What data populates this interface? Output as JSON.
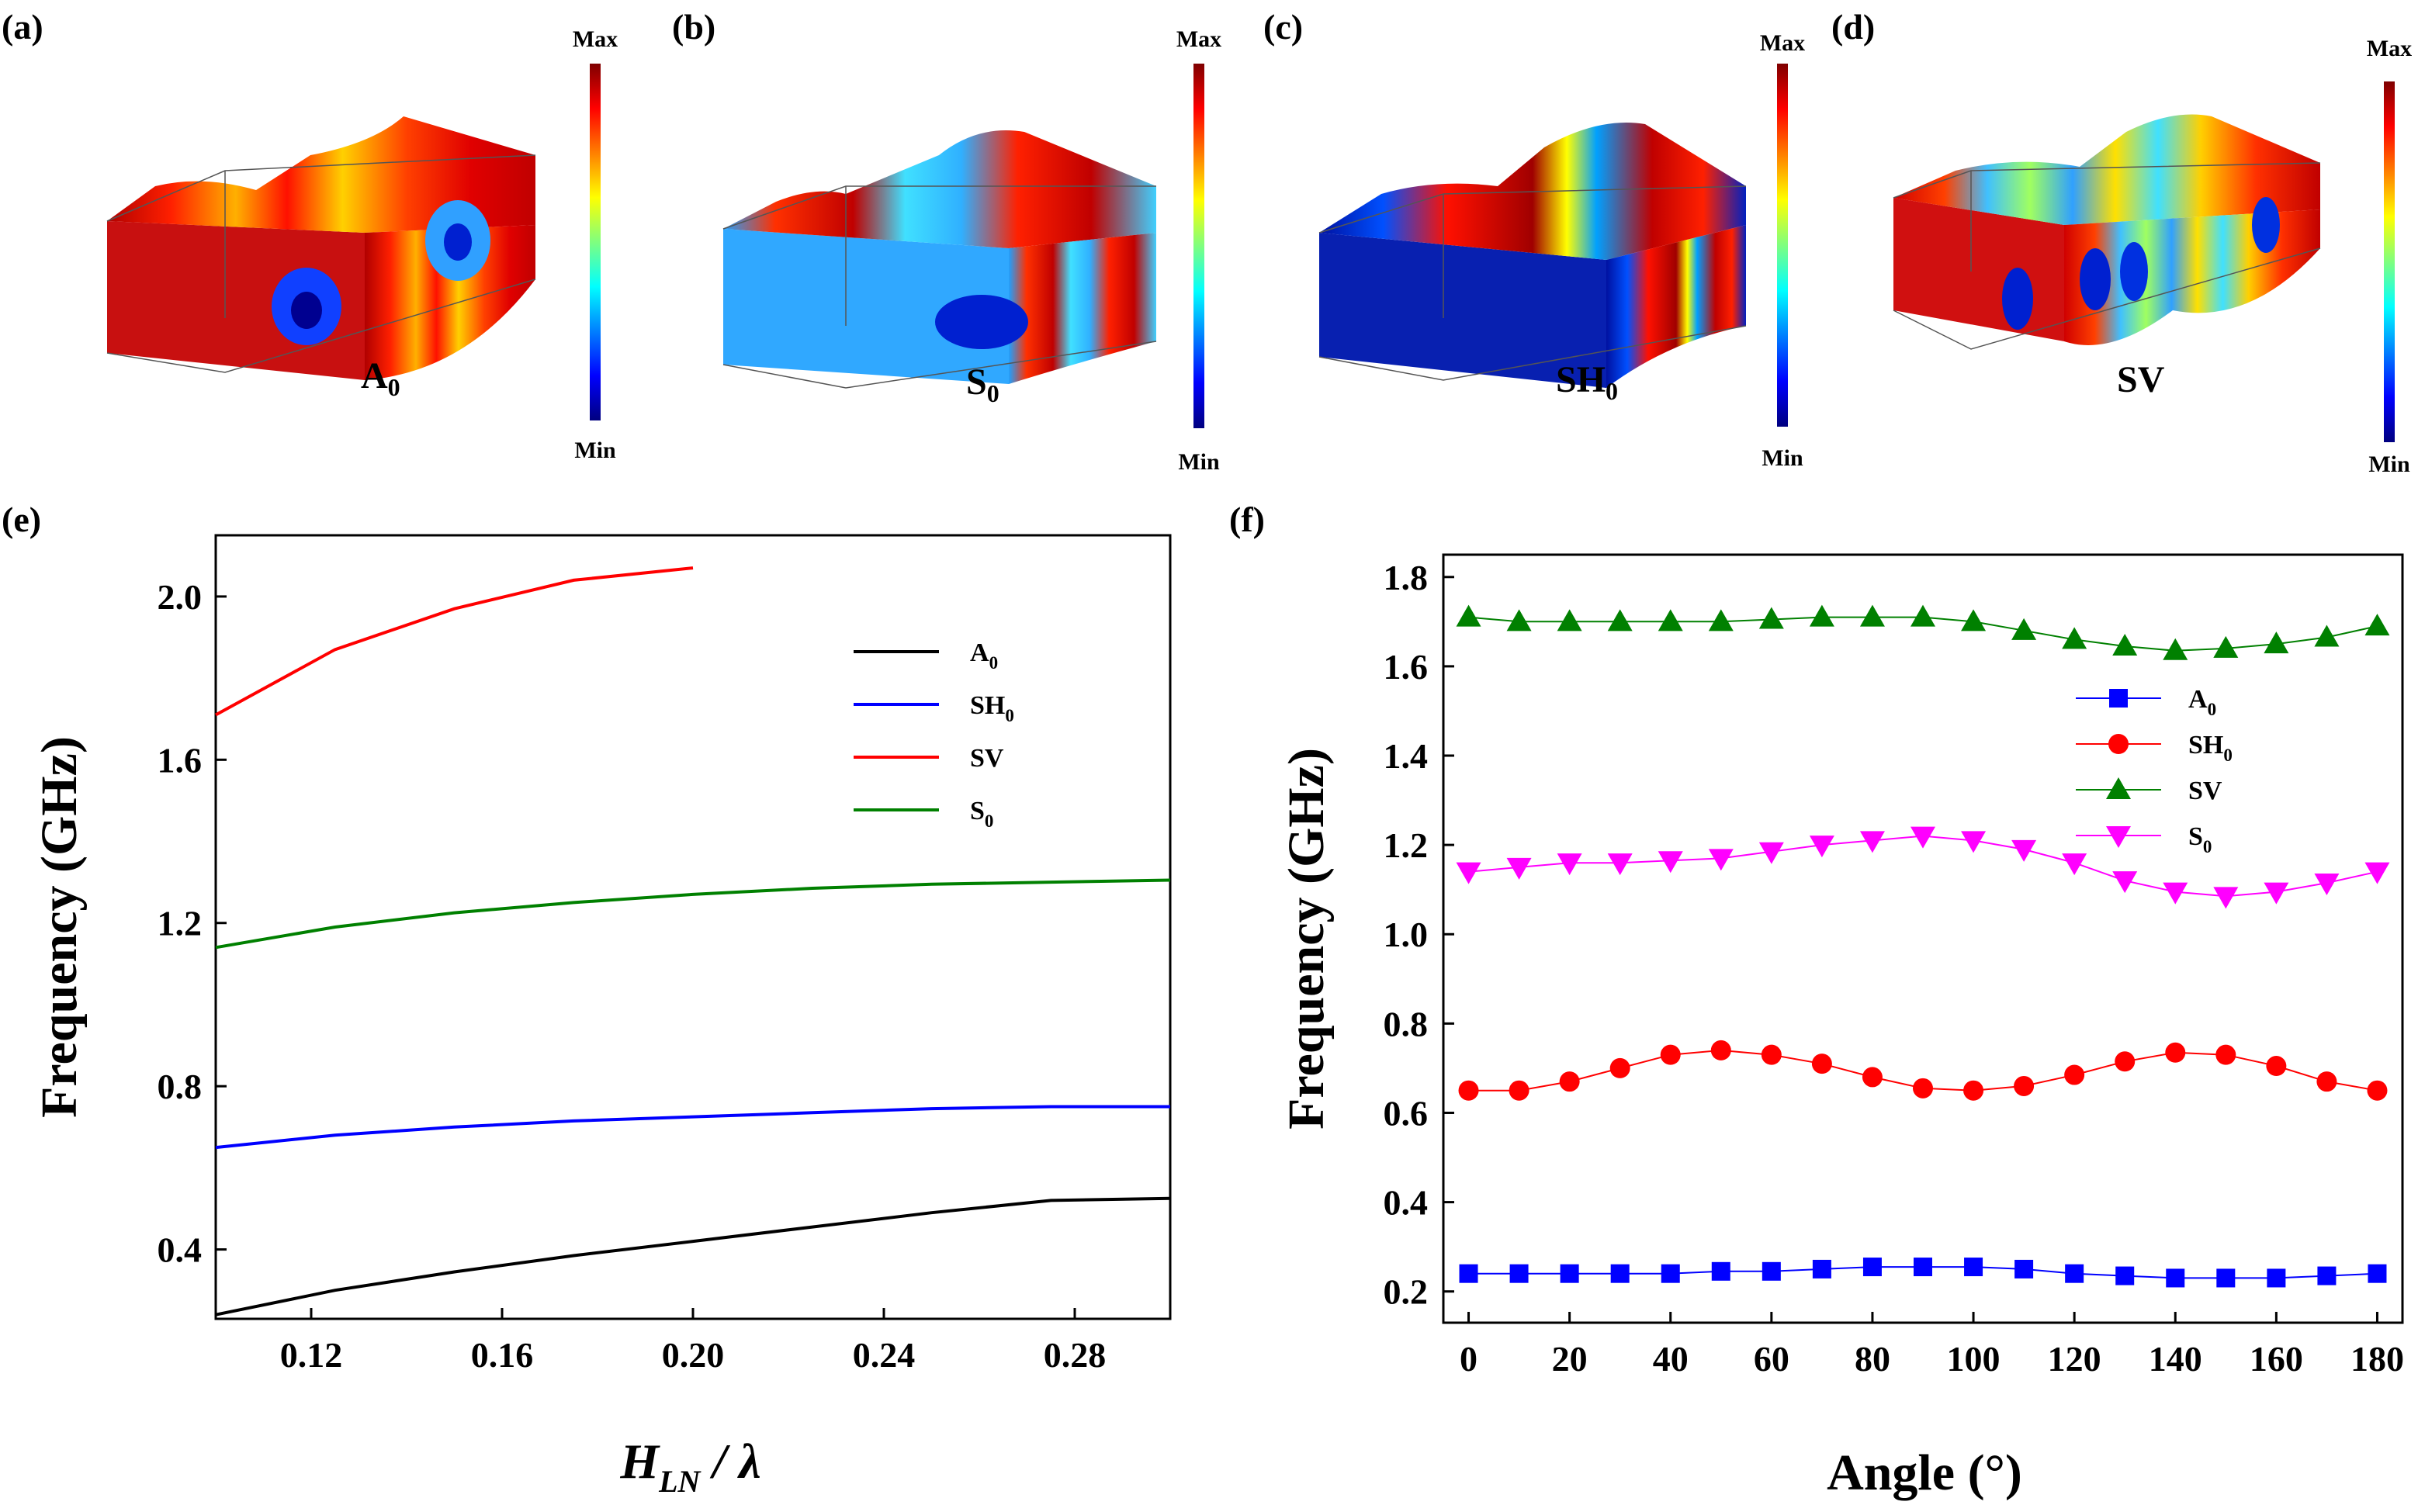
{
  "panels": {
    "a": {
      "label": "(a)",
      "mode": "A",
      "sub": "0",
      "max_label": "Max",
      "min_label": "Min"
    },
    "b": {
      "label": "(b)",
      "mode": "S",
      "sub": "0",
      "max_label": "Max",
      "min_label": "Min"
    },
    "c": {
      "label": "(c)",
      "mode": "SH",
      "sub": "0",
      "max_label": "Max",
      "min_label": "Min"
    },
    "d": {
      "label": "(d)",
      "mode": "SV",
      "sub": "",
      "max_label": "Max",
      "min_label": "Min"
    },
    "e": {
      "label": "(e)"
    },
    "f": {
      "label": "(f)"
    }
  },
  "colormap": [
    "#00007f",
    "#0000ff",
    "#007fff",
    "#00ffff",
    "#7fff7f",
    "#ffff00",
    "#ff7f00",
    "#ff0000",
    "#7f0000"
  ],
  "chart_data": [
    {
      "id": "e",
      "type": "line",
      "xlabel": "H",
      "xlabel_sub": "LN",
      "xlabel_suffix": " / λ",
      "ylabel": "Frequency (GHz)",
      "xlim": [
        0.1,
        0.3
      ],
      "ylim": [
        0.23,
        2.15
      ],
      "xticks": [
        0.12,
        0.16,
        0.2,
        0.24,
        0.28
      ],
      "xtick_labels": [
        "0.12",
        "0.16",
        "0.20",
        "0.24",
        "0.28"
      ],
      "yticks": [
        0.4,
        0.8,
        1.2,
        1.6,
        2.0
      ],
      "ytick_labels": [
        "0.4",
        "0.8",
        "1.2",
        "1.6",
        "2.0"
      ],
      "legend_position": "top-right",
      "series": [
        {
          "name": "A",
          "sub": "0",
          "color": "#000000",
          "x": [
            0.1,
            0.125,
            0.15,
            0.175,
            0.2,
            0.225,
            0.25,
            0.275,
            0.3
          ],
          "y": [
            0.24,
            0.3,
            0.345,
            0.385,
            0.42,
            0.455,
            0.49,
            0.52,
            0.525
          ]
        },
        {
          "name": "SH",
          "sub": "0",
          "color": "#0000ff",
          "x": [
            0.1,
            0.125,
            0.15,
            0.175,
            0.2,
            0.225,
            0.25,
            0.275,
            0.3
          ],
          "y": [
            0.65,
            0.68,
            0.7,
            0.715,
            0.725,
            0.735,
            0.745,
            0.75,
            0.75
          ]
        },
        {
          "name": "SV",
          "sub": "",
          "color": "#ff0000",
          "x": [
            0.1,
            0.125,
            0.15,
            0.175,
            0.2
          ],
          "y": [
            1.71,
            1.87,
            1.97,
            2.04,
            2.07
          ]
        },
        {
          "name": "S",
          "sub": "0",
          "color": "#008000",
          "x": [
            0.1,
            0.125,
            0.15,
            0.175,
            0.2,
            0.225,
            0.25,
            0.275,
            0.3
          ],
          "y": [
            1.14,
            1.19,
            1.225,
            1.25,
            1.27,
            1.285,
            1.295,
            1.3,
            1.305
          ]
        }
      ]
    },
    {
      "id": "f",
      "type": "line",
      "markers": true,
      "xlabel": "Angle (°)",
      "ylabel": "Frequency (GHz)",
      "xlim": [
        -5,
        185
      ],
      "ylim": [
        0.13,
        1.85
      ],
      "xticks": [
        0,
        20,
        40,
        60,
        80,
        100,
        120,
        140,
        160,
        180
      ],
      "xtick_labels": [
        "0",
        "20",
        "40",
        "60",
        "80",
        "100",
        "120",
        "140",
        "160",
        "180"
      ],
      "yticks": [
        0.2,
        0.4,
        0.6,
        0.8,
        1.0,
        1.2,
        1.4,
        1.6,
        1.8
      ],
      "ytick_labels": [
        "0.2",
        "0.4",
        "0.6",
        "0.8",
        "1.0",
        "1.2",
        "1.4",
        "1.6",
        "1.8"
      ],
      "legend_position": "center-right",
      "x": [
        0,
        10,
        20,
        30,
        40,
        50,
        60,
        70,
        80,
        90,
        100,
        110,
        120,
        130,
        140,
        150,
        160,
        170,
        180
      ],
      "series": [
        {
          "name": "A",
          "sub": "0",
          "color": "#0000ff",
          "marker": "square",
          "y": [
            0.24,
            0.24,
            0.24,
            0.24,
            0.24,
            0.245,
            0.245,
            0.25,
            0.255,
            0.255,
            0.255,
            0.25,
            0.24,
            0.235,
            0.23,
            0.23,
            0.23,
            0.235,
            0.24
          ]
        },
        {
          "name": "SH",
          "sub": "0",
          "color": "#ff0000",
          "marker": "circle",
          "y": [
            0.65,
            0.65,
            0.67,
            0.7,
            0.73,
            0.74,
            0.73,
            0.71,
            0.68,
            0.655,
            0.65,
            0.66,
            0.685,
            0.715,
            0.735,
            0.73,
            0.705,
            0.67,
            0.65
          ]
        },
        {
          "name": "SV",
          "sub": "",
          "color": "#008000",
          "marker": "triangle-up",
          "y": [
            1.71,
            1.7,
            1.7,
            1.7,
            1.7,
            1.7,
            1.705,
            1.71,
            1.71,
            1.71,
            1.7,
            1.68,
            1.66,
            1.645,
            1.635,
            1.64,
            1.65,
            1.665,
            1.69
          ]
        },
        {
          "name": "S",
          "sub": "0",
          "color": "#ff00ff",
          "marker": "triangle-down",
          "y": [
            1.14,
            1.15,
            1.16,
            1.16,
            1.165,
            1.17,
            1.185,
            1.2,
            1.21,
            1.22,
            1.21,
            1.19,
            1.16,
            1.12,
            1.095,
            1.085,
            1.095,
            1.115,
            1.14
          ]
        }
      ]
    }
  ]
}
